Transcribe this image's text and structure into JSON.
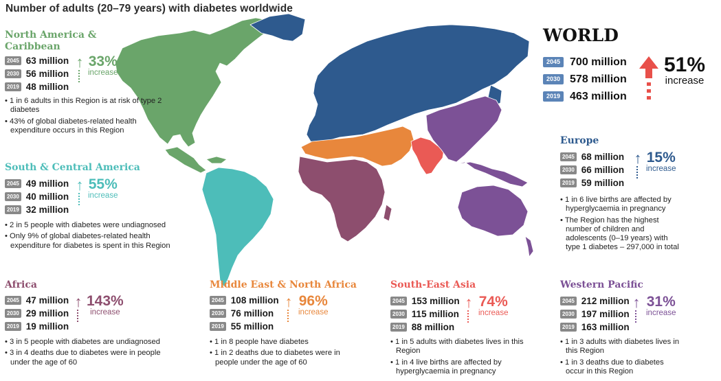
{
  "title": "Number of adults (20–79 years) with diabetes worldwide",
  "colors": {
    "north_america": "#6aa56a",
    "south_america": "#4dbdb9",
    "europe": "#2e5a8e",
    "africa": "#8d4e6e",
    "mena": "#e8873c",
    "sea": "#ea5a55",
    "western_pacific": "#7c5196",
    "world": "#e8504a"
  },
  "world": {
    "heading": "WORLD",
    "rows": [
      {
        "year": "2045",
        "value": "700 million"
      },
      {
        "year": "2030",
        "value": "578 million"
      },
      {
        "year": "2019",
        "value": "463 million"
      }
    ],
    "pct": "51%",
    "inc": "increase"
  },
  "regions": {
    "north_america": {
      "name": "North America & Caribbean",
      "rows": [
        {
          "year": "2045",
          "value": "63 million"
        },
        {
          "year": "2030",
          "value": "56 million"
        },
        {
          "year": "2019",
          "value": "48 million"
        }
      ],
      "pct": "33%",
      "inc": "increase",
      "bullets": [
        "• 1 in 6 adults in this Region is at risk of type 2 diabetes",
        "• 43% of global diabetes-related health expenditure occurs in this Region"
      ]
    },
    "south_america": {
      "name": "South & Central America",
      "rows": [
        {
          "year": "2045",
          "value": "49 million"
        },
        {
          "year": "2030",
          "value": "40 million"
        },
        {
          "year": "2019",
          "value": "32 million"
        }
      ],
      "pct": "55%",
      "inc": "increase",
      "bullets": [
        "• 2 in 5 people with diabetes were undiagnosed",
        "• Only 9% of global diabetes-related health expenditure for diabetes is spent in this Region"
      ]
    },
    "europe": {
      "name": "Europe",
      "rows": [
        {
          "year": "2045",
          "value": "68 million"
        },
        {
          "year": "2030",
          "value": "66 million"
        },
        {
          "year": "2019",
          "value": "59 million"
        }
      ],
      "pct": "15%",
      "inc": "increase",
      "bullets": [
        "• 1 in 6 live births are affected by hyperglycaemia in pregnancy",
        "• The Region has the highest number of children and adolescents (0–19 years) with type 1 diabetes – 297,000 in total"
      ]
    },
    "africa": {
      "name": "Africa",
      "rows": [
        {
          "year": "2045",
          "value": "47 million"
        },
        {
          "year": "2030",
          "value": "29 million"
        },
        {
          "year": "2019",
          "value": "19 million"
        }
      ],
      "pct": "143%",
      "inc": "increase",
      "bullets": [
        "• 3 in 5 people with diabetes are undiagnosed",
        "• 3 in 4 deaths due to diabetes were in people under the age of 60"
      ]
    },
    "mena": {
      "name": "Middle East & North Africa",
      "rows": [
        {
          "year": "2045",
          "value": "108 million"
        },
        {
          "year": "2030",
          "value": "76 million"
        },
        {
          "year": "2019",
          "value": "55 million"
        }
      ],
      "pct": "96%",
      "inc": "increase",
      "bullets": [
        "• 1 in 8 people have diabetes",
        "• 1 in 2 deaths due to diabetes were in people under the age of 60"
      ]
    },
    "sea": {
      "name": "South-East Asia",
      "rows": [
        {
          "year": "2045",
          "value": "153 million"
        },
        {
          "year": "2030",
          "value": "115 million"
        },
        {
          "year": "2019",
          "value": "88 million"
        }
      ],
      "pct": "74%",
      "inc": "increase",
      "bullets": [
        "• 1 in 5 adults with diabetes lives in this Region",
        "• 1 in 4 live births are affected by hyperglycaemia in pregnancy"
      ]
    },
    "western_pacific": {
      "name": "Western Pacific",
      "rows": [
        {
          "year": "2045",
          "value": "212 million"
        },
        {
          "year": "2030",
          "value": "197 million"
        },
        {
          "year": "2019",
          "value": "163 million"
        }
      ],
      "pct": "31%",
      "inc": "increase",
      "bullets": [
        "• 1 in 3 adults with diabetes lives in this Region",
        "• 1 in 3 deaths due to diabetes occur in this Region"
      ]
    }
  }
}
